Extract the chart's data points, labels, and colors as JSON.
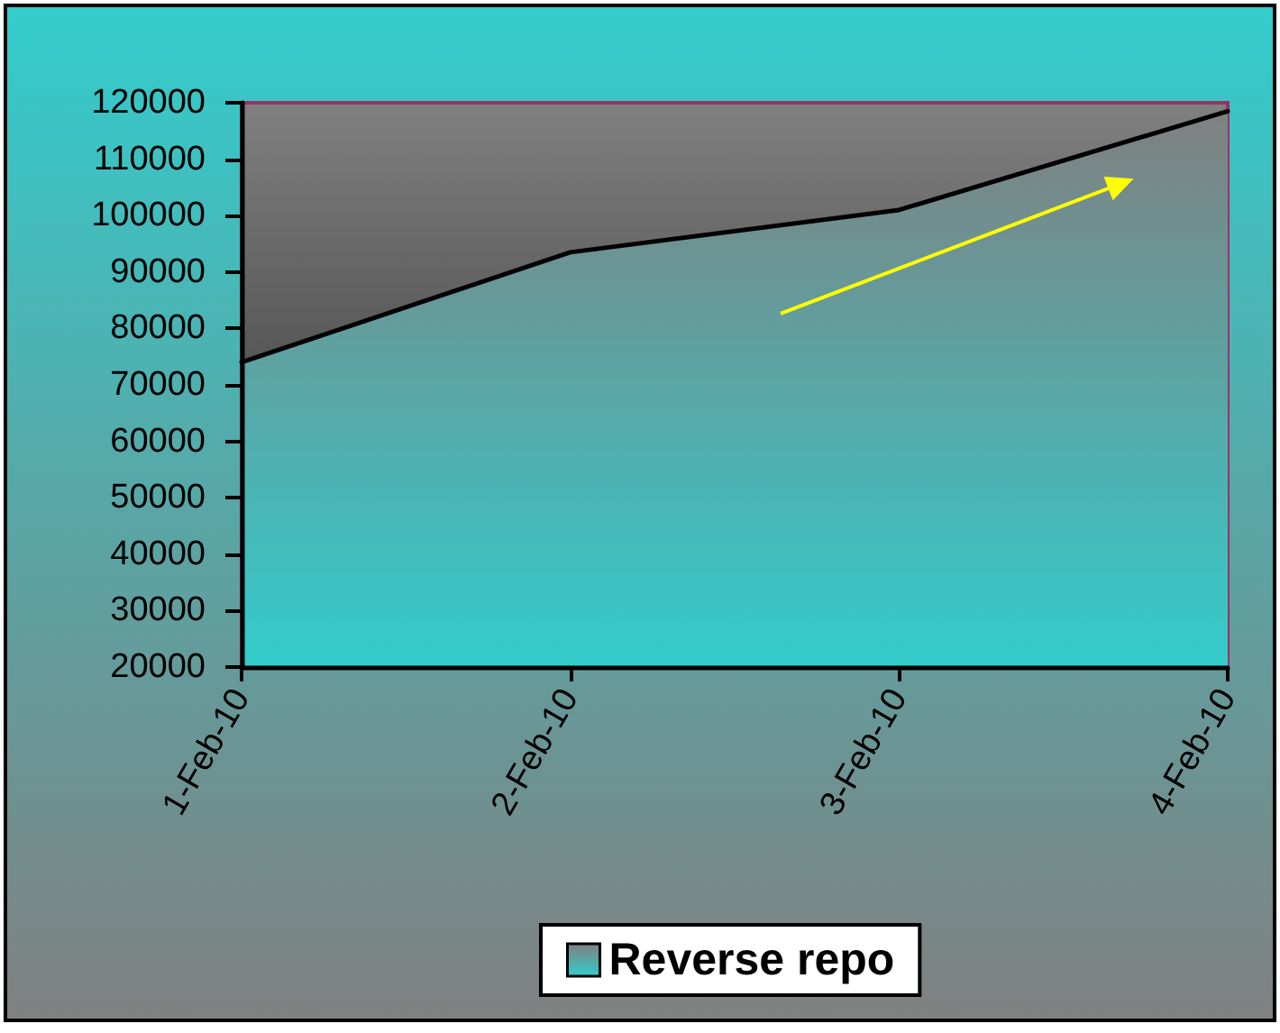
{
  "chart_data": {
    "type": "area",
    "categories": [
      "1-Feb-10",
      "2-Feb-10",
      "3-Feb-10",
      "4-Feb-10"
    ],
    "series": [
      {
        "name": "Reverse repo",
        "color": "#33cccc",
        "values": [
          74000,
          93500,
          101000,
          118500
        ]
      }
    ],
    "ylim": [
      20000,
      120000
    ],
    "yticks": [
      20000,
      30000,
      40000,
      50000,
      60000,
      70000,
      80000,
      90000,
      100000,
      110000,
      120000
    ],
    "legend": "bottom"
  }
}
